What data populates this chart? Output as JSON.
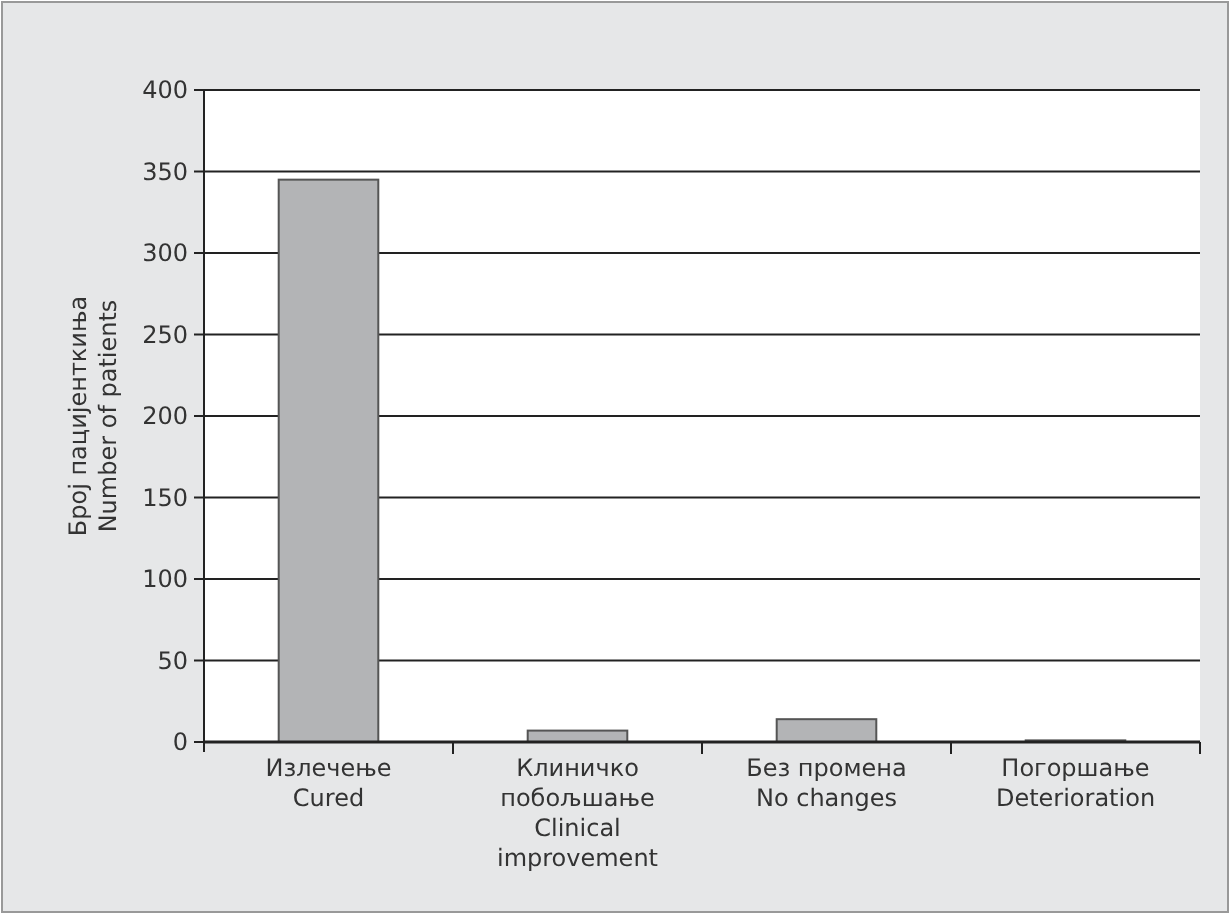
{
  "chart_data": {
    "type": "bar",
    "ylabel": "Број пацијенткиња\nNumber of patients",
    "categories": [
      "Излечење\nCured",
      "Клиничко\nпобољшање\nClinical\nimprovement",
      "Без промена\nNo changes",
      "Погоршање\nDeterioration"
    ],
    "values": [
      345,
      7,
      14,
      1
    ],
    "color": "#b3b4b6",
    "ylim": [
      0,
      400
    ],
    "yticks": [
      0,
      50,
      100,
      150,
      200,
      250,
      300,
      350,
      400
    ],
    "grid": "y"
  }
}
